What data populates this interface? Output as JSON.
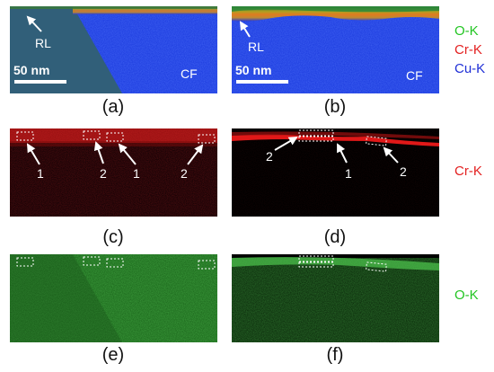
{
  "figure": {
    "panel_a": {
      "caption": "(a)",
      "label_rl": "RL",
      "label_cf": "CF",
      "scalebar": "50 nm"
    },
    "panel_b": {
      "caption": "(b)",
      "label_rl": "RL",
      "label_cf": "CF",
      "scalebar": "50 nm"
    },
    "panel_c": {
      "caption": "(c)",
      "markers": [
        "1",
        "2",
        "1",
        "2"
      ]
    },
    "panel_d": {
      "caption": "(d)",
      "markers": [
        "2",
        "1",
        "2"
      ]
    },
    "panel_e": {
      "caption": "(e)"
    },
    "panel_f": {
      "caption": "(f)"
    },
    "legend_top": [
      {
        "text": "O-K",
        "color": "#22c522"
      },
      {
        "text": "Cr-K",
        "color": "#e32020"
      },
      {
        "text": "Cu-K",
        "color": "#1f2fd6"
      }
    ],
    "legend_cr": {
      "text": "Cr-K",
      "color": "#e32020"
    },
    "legend_o": {
      "text": "O-K",
      "color": "#22c522"
    }
  }
}
